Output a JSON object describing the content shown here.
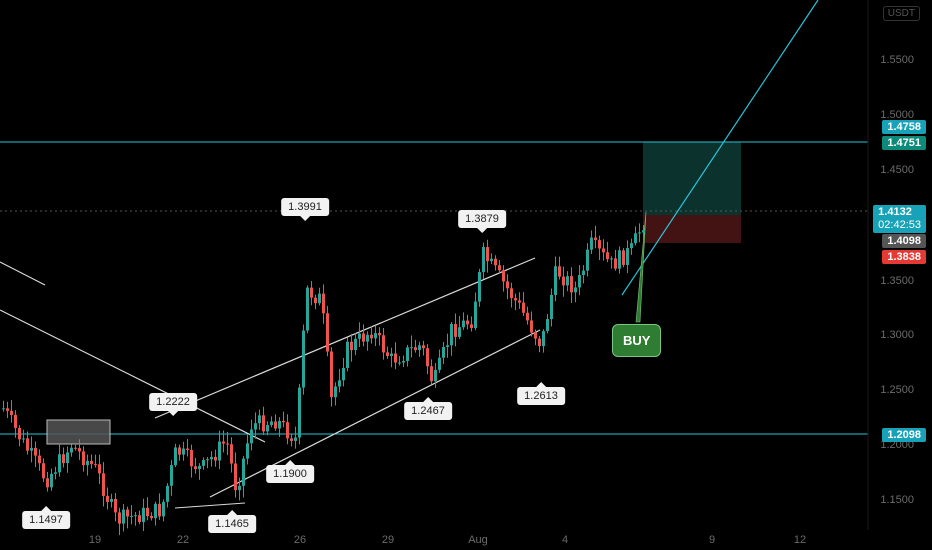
{
  "symbol_badge": "USDT",
  "y_axis": {
    "ticks": [
      {
        "value": 1.55,
        "label": "1.5500"
      },
      {
        "value": 1.5,
        "label": "1.5000"
      },
      {
        "value": 1.45,
        "label": "1.4500"
      },
      {
        "value": 1.35,
        "label": "1.3500"
      },
      {
        "value": 1.3,
        "label": "1.3000"
      },
      {
        "value": 1.25,
        "label": "1.2500"
      },
      {
        "value": 1.2,
        "label": "1.2000"
      },
      {
        "value": 1.15,
        "label": "1.1500"
      }
    ]
  },
  "x_axis": {
    "ticks": [
      {
        "label": "19"
      },
      {
        "label": "22"
      },
      {
        "label": "26"
      },
      {
        "label": "29"
      },
      {
        "label": "Aug"
      },
      {
        "label": "4"
      },
      {
        "label": "9"
      },
      {
        "label": "12"
      }
    ]
  },
  "price_tags": {
    "target": {
      "label": "1.4758",
      "color": "#17a2b8"
    },
    "resistance": {
      "label": "1.4751",
      "color": "#0d8a7a"
    },
    "current": {
      "label": "1.4132",
      "countdown": "02:42:53",
      "color": "#17a2b8"
    },
    "entry": {
      "label": "1.4098",
      "color": "#555555"
    },
    "stop": {
      "label": "1.3838",
      "color": "#e53935"
    },
    "support": {
      "label": "1.2098",
      "color": "#17a2b8"
    }
  },
  "callouts": [
    {
      "label": "1.3991"
    },
    {
      "label": "1.3879"
    },
    {
      "label": "1.2222"
    },
    {
      "label": "1.2467"
    },
    {
      "label": "1.2613"
    },
    {
      "label": "1.1900"
    },
    {
      "label": "1.1497"
    },
    {
      "label": "1.1465"
    }
  ],
  "buy_signal": {
    "label": "BUY"
  },
  "colors": {
    "up": "#26a69a",
    "down": "#ef5350",
    "level": "#26c6da",
    "trend": "#e0e0e0"
  },
  "chart_data": {
    "type": "candlestick",
    "ylim": [
      1.1,
      1.62
    ],
    "levels": [
      1.4751,
      1.2098
    ],
    "current_price": 1.4132
  }
}
